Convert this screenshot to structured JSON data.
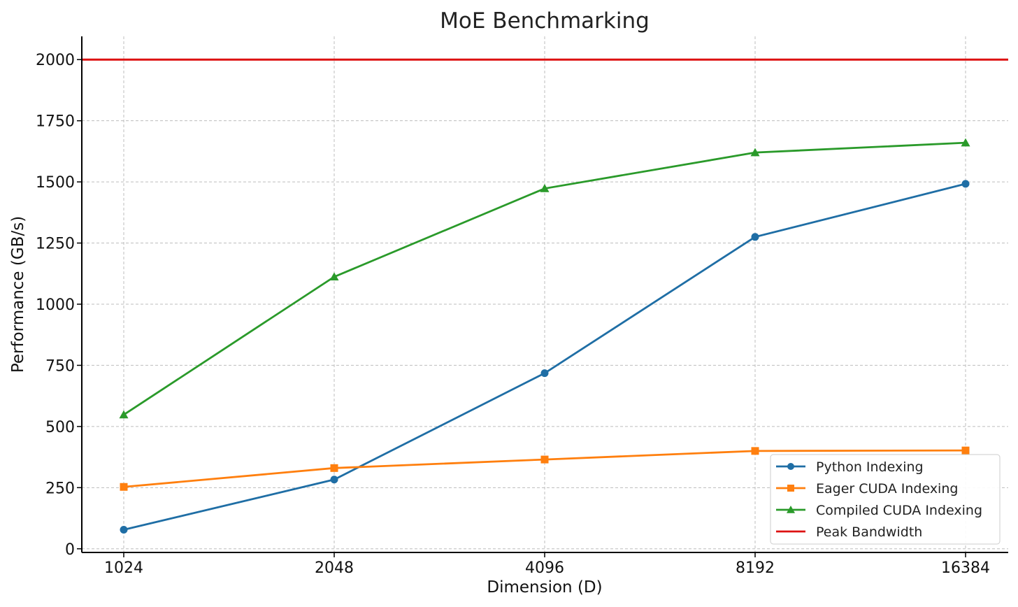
{
  "chart_data": {
    "type": "line",
    "title": "MoE Benchmarking",
    "xlabel": "Dimension (D)",
    "ylabel": "Performance (GB/s)",
    "categories": [
      "1024",
      "2048",
      "4096",
      "8192",
      "16384"
    ],
    "ylim": [
      -15,
      2095
    ],
    "yticks": [
      0,
      250,
      500,
      750,
      1000,
      1250,
      1500,
      1750,
      2000
    ],
    "grid": true,
    "legend_position": "lower-right",
    "series": [
      {
        "name": "Python Indexing",
        "values": [
          78,
          283,
          718,
          1275,
          1492
        ],
        "color": "#1f6ea5",
        "marker": "circle"
      },
      {
        "name": "Eager CUDA Indexing",
        "values": [
          253,
          330,
          365,
          400,
          402
        ],
        "color": "#ff7f0e",
        "marker": "square"
      },
      {
        "name": "Compiled CUDA Indexing",
        "values": [
          548,
          1112,
          1473,
          1620,
          1660
        ],
        "color": "#2a9a2a",
        "marker": "triangle"
      }
    ],
    "reference_lines": [
      {
        "name": "Peak Bandwidth",
        "value": 2000,
        "color": "#dd1111"
      }
    ]
  }
}
